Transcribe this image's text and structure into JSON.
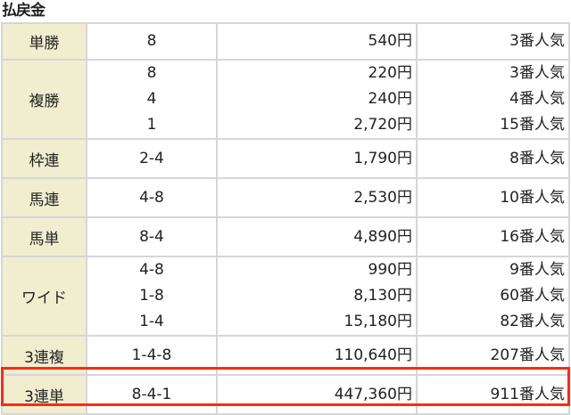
{
  "title": "払戻金",
  "highlight_color": "#ff2a0e",
  "rows": [
    {
      "label": "単勝",
      "entries": [
        {
          "combo": "8",
          "payout": "540円",
          "popularity": "3番人気"
        }
      ]
    },
    {
      "label": "複勝",
      "entries": [
        {
          "combo": "8",
          "payout": "220円",
          "popularity": "3番人気"
        },
        {
          "combo": "4",
          "payout": "240円",
          "popularity": "4番人気"
        },
        {
          "combo": "1",
          "payout": "2,720円",
          "popularity": "15番人気"
        }
      ]
    },
    {
      "label": "枠連",
      "entries": [
        {
          "combo": "2-4",
          "payout": "1,790円",
          "popularity": "8番人気"
        }
      ]
    },
    {
      "label": "馬連",
      "entries": [
        {
          "combo": "4-8",
          "payout": "2,530円",
          "popularity": "10番人気"
        }
      ]
    },
    {
      "label": "馬単",
      "entries": [
        {
          "combo": "8-4",
          "payout": "4,890円",
          "popularity": "16番人気"
        }
      ]
    },
    {
      "label": "ワイド",
      "entries": [
        {
          "combo": "4-8",
          "payout": "990円",
          "popularity": "9番人気"
        },
        {
          "combo": "1-8",
          "payout": "8,130円",
          "popularity": "60番人気"
        },
        {
          "combo": "1-4",
          "payout": "15,180円",
          "popularity": "82番人気"
        }
      ]
    },
    {
      "label": "3連複",
      "entries": [
        {
          "combo": "1-4-8",
          "payout": "110,640円",
          "popularity": "207番人気"
        }
      ]
    },
    {
      "label": "3連単",
      "entries": [
        {
          "combo": "8-4-1",
          "payout": "447,360円",
          "popularity": "911番人気"
        }
      ],
      "highlighted": true
    }
  ]
}
